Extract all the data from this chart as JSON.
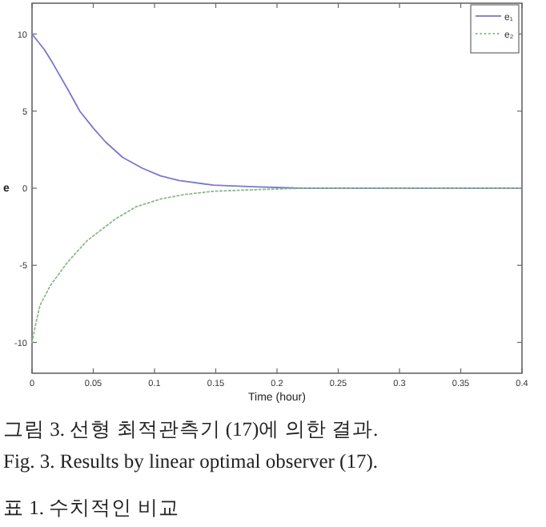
{
  "chart_data": {
    "type": "line",
    "xlabel": "Time (hour)",
    "ylabel": "e",
    "annotations": [
      "그림 3. 선형 최적관측기 (17)에 의한 결과.",
      "Fig.   3. Results by linear optimal observer (17).",
      "표    1. 수치적인 비교"
    ],
    "xlim": [
      0,
      0.4
    ],
    "ylim": [
      -12,
      12
    ],
    "xticks": [
      0,
      0.05,
      0.1,
      0.15,
      0.2,
      0.25,
      0.3,
      0.35,
      0.4
    ],
    "yticks": [
      -10,
      -5,
      0,
      5,
      10
    ],
    "legend": "top right",
    "marker": "none",
    "series": [
      {
        "name": "e₁",
        "color": "#7878d0",
        "line_style": "solid",
        "x": [
          0,
          0.01,
          0.017,
          0.03,
          0.039,
          0.05,
          0.06,
          0.074,
          0.09,
          0.105,
          0.12,
          0.148,
          0.18,
          0.22,
          0.3,
          0.4
        ],
        "values": [
          10,
          9.0,
          8.1,
          6.3,
          5.0,
          3.9,
          3.0,
          2.0,
          1.3,
          0.8,
          0.5,
          0.2,
          0.1,
          0,
          0,
          0
        ]
      },
      {
        "name": "e₂",
        "color": "#88bb88",
        "line_style": "dotted",
        "x": [
          0,
          0.003,
          0.0065,
          0.015,
          0.029,
          0.045,
          0.068,
          0.085,
          0.105,
          0.125,
          0.148,
          0.18,
          0.22,
          0.3,
          0.4
        ],
        "values": [
          -10,
          -8.8,
          -7.6,
          -6.3,
          -4.8,
          -3.4,
          -2.0,
          -1.2,
          -0.7,
          -0.4,
          -0.2,
          -0.1,
          0,
          0,
          0
        ]
      }
    ]
  }
}
